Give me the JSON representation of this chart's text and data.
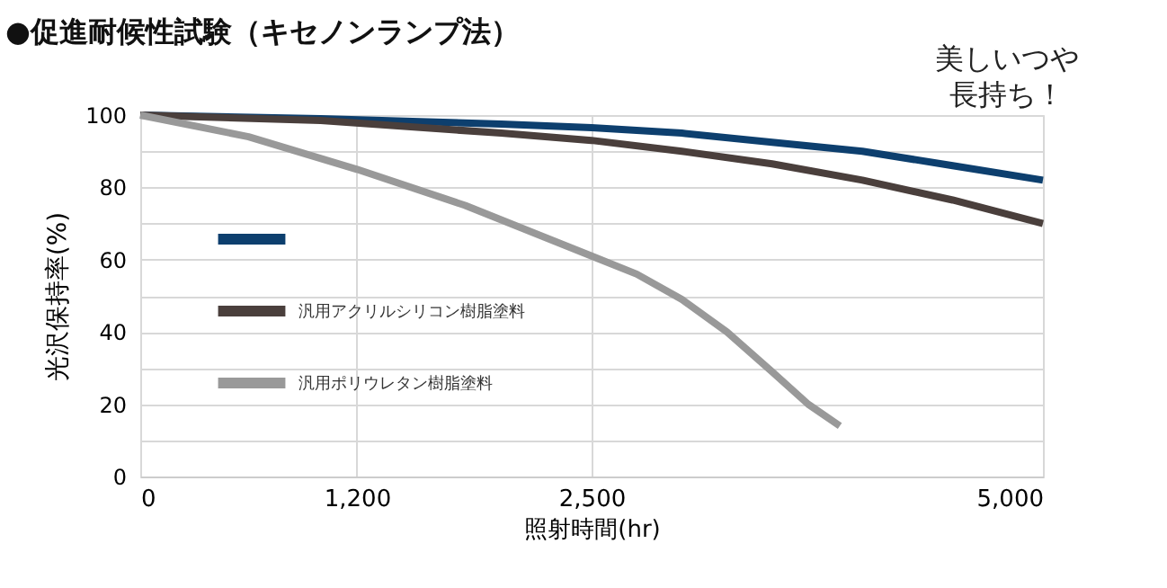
{
  "chart_data": {
    "type": "line",
    "title": "●促進耐候性試験（キセノンランプ法）",
    "xlabel": "照射時間(hr)",
    "ylabel": "光沢保持率(%)",
    "annotations": [
      "美しいつや長持ち！"
    ],
    "series": [
      {
        "color": "#0d3f6e",
        "x": [
          0,
          1000,
          2000,
          2500,
          3000,
          3500,
          4000,
          4500,
          5000
        ],
        "values": [
          100,
          99,
          97.5,
          96.5,
          95,
          92.5,
          90,
          86,
          82
        ]
      },
      {
        "name": "汎用アクリルシリコン樹脂塗料",
        "color": "#4a3f3c",
        "x": [
          0,
          1000,
          2000,
          2500,
          3000,
          3500,
          4000,
          4500,
          5000
        ],
        "values": [
          100,
          98.5,
          95,
          93,
          90,
          86.5,
          82,
          76.5,
          70
        ]
      },
      {
        "name": "汎用ポリウレタン樹脂塗料",
        "color": "#999999",
        "x": [
          0,
          600,
          1200,
          1800,
          2500,
          2750,
          3000,
          3250,
          3500,
          3700,
          3875
        ],
        "values": [
          100,
          94,
          85,
          75,
          61,
          56,
          49,
          40,
          29,
          20,
          14
        ]
      }
    ],
    "xlim": [
      0,
      5000
    ],
    "xticks": [
      0,
      {
        "value": 1200,
        "label": "1,200"
      },
      {
        "value": 2500,
        "label": "2,500"
      },
      {
        "value": 5000,
        "label": "5,000"
      }
    ],
    "ylim": [
      0,
      100
    ],
    "yticks": [
      0,
      {
        "value": 10,
        "label": null
      },
      20,
      {
        "value": 30,
        "label": null
      },
      40,
      {
        "value": 50,
        "label": null
      },
      60,
      {
        "value": 70,
        "label": null
      },
      80,
      {
        "value": 90,
        "label": null
      },
      100
    ],
    "grid": true,
    "legend": "bottom left",
    "marker": "none",
    "line_style": "solid"
  }
}
